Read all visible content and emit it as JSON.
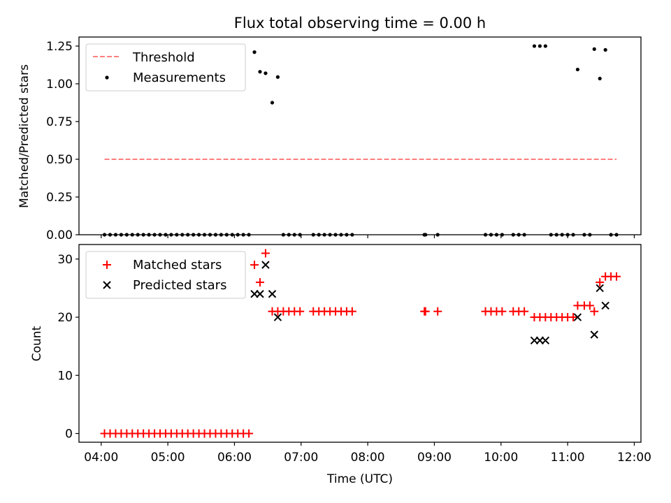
{
  "chart_data": [
    {
      "type": "scatter",
      "title": "Flux total observing time = 0.00 h",
      "xlabel": "",
      "ylabel": "Matched/Predicted stars",
      "xlim": [
        "03:40",
        "12:06"
      ],
      "ylim": [
        0.0,
        1.31
      ],
      "xticks": [
        "04:00",
        "05:00",
        "06:00",
        "07:00",
        "08:00",
        "09:00",
        "10:00",
        "11:00",
        "12:00"
      ],
      "yticks": [
        "0.00",
        "0.25",
        "0.50",
        "0.75",
        "1.00",
        "1.25"
      ],
      "legend": {
        "placement": "top-left"
      },
      "series": [
        {
          "name": "Threshold",
          "style": "dashed-line",
          "color": "#ff7f7f",
          "x": [
            "04:03",
            "11:44"
          ],
          "y": [
            0.5,
            0.5
          ]
        },
        {
          "name": "Measurements",
          "style": "dot",
          "color": "#000000",
          "points": [
            [
              "04:03",
              0
            ],
            [
              "04:08",
              0
            ],
            [
              "04:13",
              0
            ],
            [
              "04:18",
              0
            ],
            [
              "04:23",
              0
            ],
            [
              "04:28",
              0
            ],
            [
              "04:33",
              0
            ],
            [
              "04:38",
              0
            ],
            [
              "04:43",
              0
            ],
            [
              "04:48",
              0
            ],
            [
              "04:53",
              0
            ],
            [
              "04:58",
              0
            ],
            [
              "05:03",
              0
            ],
            [
              "05:08",
              0
            ],
            [
              "05:13",
              0
            ],
            [
              "05:18",
              0
            ],
            [
              "05:23",
              0
            ],
            [
              "05:28",
              0
            ],
            [
              "05:33",
              0
            ],
            [
              "05:38",
              0
            ],
            [
              "05:43",
              0
            ],
            [
              "05:48",
              0
            ],
            [
              "05:53",
              0
            ],
            [
              "05:58",
              0
            ],
            [
              "06:03",
              0
            ],
            [
              "06:08",
              0
            ],
            [
              "06:13",
              0
            ],
            [
              "06:18",
              1.21
            ],
            [
              "06:23",
              1.08
            ],
            [
              "06:28",
              1.07
            ],
            [
              "06:34",
              0.875
            ],
            [
              "06:39",
              1.045
            ],
            [
              "06:44",
              0
            ],
            [
              "06:49",
              0
            ],
            [
              "06:54",
              0
            ],
            [
              "06:59",
              0
            ],
            [
              "07:11",
              0
            ],
            [
              "07:16",
              0
            ],
            [
              "07:21",
              0
            ],
            [
              "07:26",
              0
            ],
            [
              "07:31",
              0
            ],
            [
              "07:36",
              0
            ],
            [
              "07:41",
              0
            ],
            [
              "07:46",
              0
            ],
            [
              "08:51",
              0
            ],
            [
              "08:52",
              0
            ],
            [
              "09:03",
              0
            ],
            [
              "09:46",
              0
            ],
            [
              "09:51",
              0
            ],
            [
              "09:56",
              0
            ],
            [
              "10:01",
              0
            ],
            [
              "10:11",
              0
            ],
            [
              "10:16",
              0
            ],
            [
              "10:21",
              0
            ],
            [
              "10:30",
              1.25
            ],
            [
              "10:35",
              1.25
            ],
            [
              "10:40",
              1.25
            ],
            [
              "10:45",
              0
            ],
            [
              "10:50",
              0
            ],
            [
              "10:55",
              0
            ],
            [
              "11:00",
              0
            ],
            [
              "11:05",
              0
            ],
            [
              "11:09",
              1.095
            ],
            [
              "11:15",
              0
            ],
            [
              "11:20",
              0
            ],
            [
              "11:24",
              1.23
            ],
            [
              "11:29",
              1.035
            ],
            [
              "11:34",
              1.225
            ],
            [
              "11:39",
              0
            ],
            [
              "11:44",
              0
            ]
          ]
        }
      ]
    },
    {
      "type": "scatter",
      "title": "",
      "xlabel": "Time (UTC)",
      "ylabel": "Count",
      "xlim": [
        "03:40",
        "12:06"
      ],
      "ylim": [
        -1.5,
        32.5
      ],
      "xticks": [
        "04:00",
        "05:00",
        "06:00",
        "07:00",
        "08:00",
        "09:00",
        "10:00",
        "11:00",
        "12:00"
      ],
      "yticks": [
        "0",
        "10",
        "20",
        "30"
      ],
      "legend": {
        "placement": "top-left"
      },
      "series": [
        {
          "name": "Matched stars",
          "style": "plus",
          "color": "#ff0000",
          "points": [
            [
              "04:03",
              0
            ],
            [
              "04:08",
              0
            ],
            [
              "04:13",
              0
            ],
            [
              "04:18",
              0
            ],
            [
              "04:23",
              0
            ],
            [
              "04:28",
              0
            ],
            [
              "04:33",
              0
            ],
            [
              "04:38",
              0
            ],
            [
              "04:43",
              0
            ],
            [
              "04:48",
              0
            ],
            [
              "04:53",
              0
            ],
            [
              "04:58",
              0
            ],
            [
              "05:03",
              0
            ],
            [
              "05:08",
              0
            ],
            [
              "05:13",
              0
            ],
            [
              "05:18",
              0
            ],
            [
              "05:23",
              0
            ],
            [
              "05:28",
              0
            ],
            [
              "05:33",
              0
            ],
            [
              "05:38",
              0
            ],
            [
              "05:43",
              0
            ],
            [
              "05:48",
              0
            ],
            [
              "05:53",
              0
            ],
            [
              "05:58",
              0
            ],
            [
              "06:03",
              0
            ],
            [
              "06:08",
              0
            ],
            [
              "06:13",
              0
            ],
            [
              "06:18",
              29
            ],
            [
              "06:23",
              26
            ],
            [
              "06:28",
              31
            ],
            [
              "06:34",
              21
            ],
            [
              "06:39",
              21
            ],
            [
              "06:44",
              21
            ],
            [
              "06:49",
              21
            ],
            [
              "06:54",
              21
            ],
            [
              "06:59",
              21
            ],
            [
              "07:11",
              21
            ],
            [
              "07:16",
              21
            ],
            [
              "07:21",
              21
            ],
            [
              "07:26",
              21
            ],
            [
              "07:31",
              21
            ],
            [
              "07:36",
              21
            ],
            [
              "07:41",
              21
            ],
            [
              "07:46",
              21
            ],
            [
              "08:51",
              21
            ],
            [
              "08:52",
              21
            ],
            [
              "09:03",
              21
            ],
            [
              "09:46",
              21
            ],
            [
              "09:51",
              21
            ],
            [
              "09:56",
              21
            ],
            [
              "10:01",
              21
            ],
            [
              "10:11",
              21
            ],
            [
              "10:16",
              21
            ],
            [
              "10:21",
              21
            ],
            [
              "10:30",
              20
            ],
            [
              "10:35",
              20
            ],
            [
              "10:40",
              20
            ],
            [
              "10:45",
              20
            ],
            [
              "10:50",
              20
            ],
            [
              "10:55",
              20
            ],
            [
              "11:00",
              20
            ],
            [
              "11:05",
              20
            ],
            [
              "11:09",
              22
            ],
            [
              "11:15",
              22
            ],
            [
              "11:20",
              22
            ],
            [
              "11:24",
              21
            ],
            [
              "11:29",
              26
            ],
            [
              "11:34",
              27
            ],
            [
              "11:39",
              27
            ],
            [
              "11:44",
              27
            ]
          ]
        },
        {
          "name": "Predicted stars",
          "style": "x",
          "color": "#000000",
          "points": [
            [
              "06:18",
              24
            ],
            [
              "06:23",
              24
            ],
            [
              "06:28",
              29
            ],
            [
              "06:34",
              24
            ],
            [
              "06:39",
              20
            ],
            [
              "10:30",
              16
            ],
            [
              "10:35",
              16
            ],
            [
              "10:40",
              16
            ],
            [
              "11:09",
              20
            ],
            [
              "11:24",
              17
            ],
            [
              "11:29",
              25
            ],
            [
              "11:34",
              22
            ]
          ]
        }
      ]
    }
  ]
}
